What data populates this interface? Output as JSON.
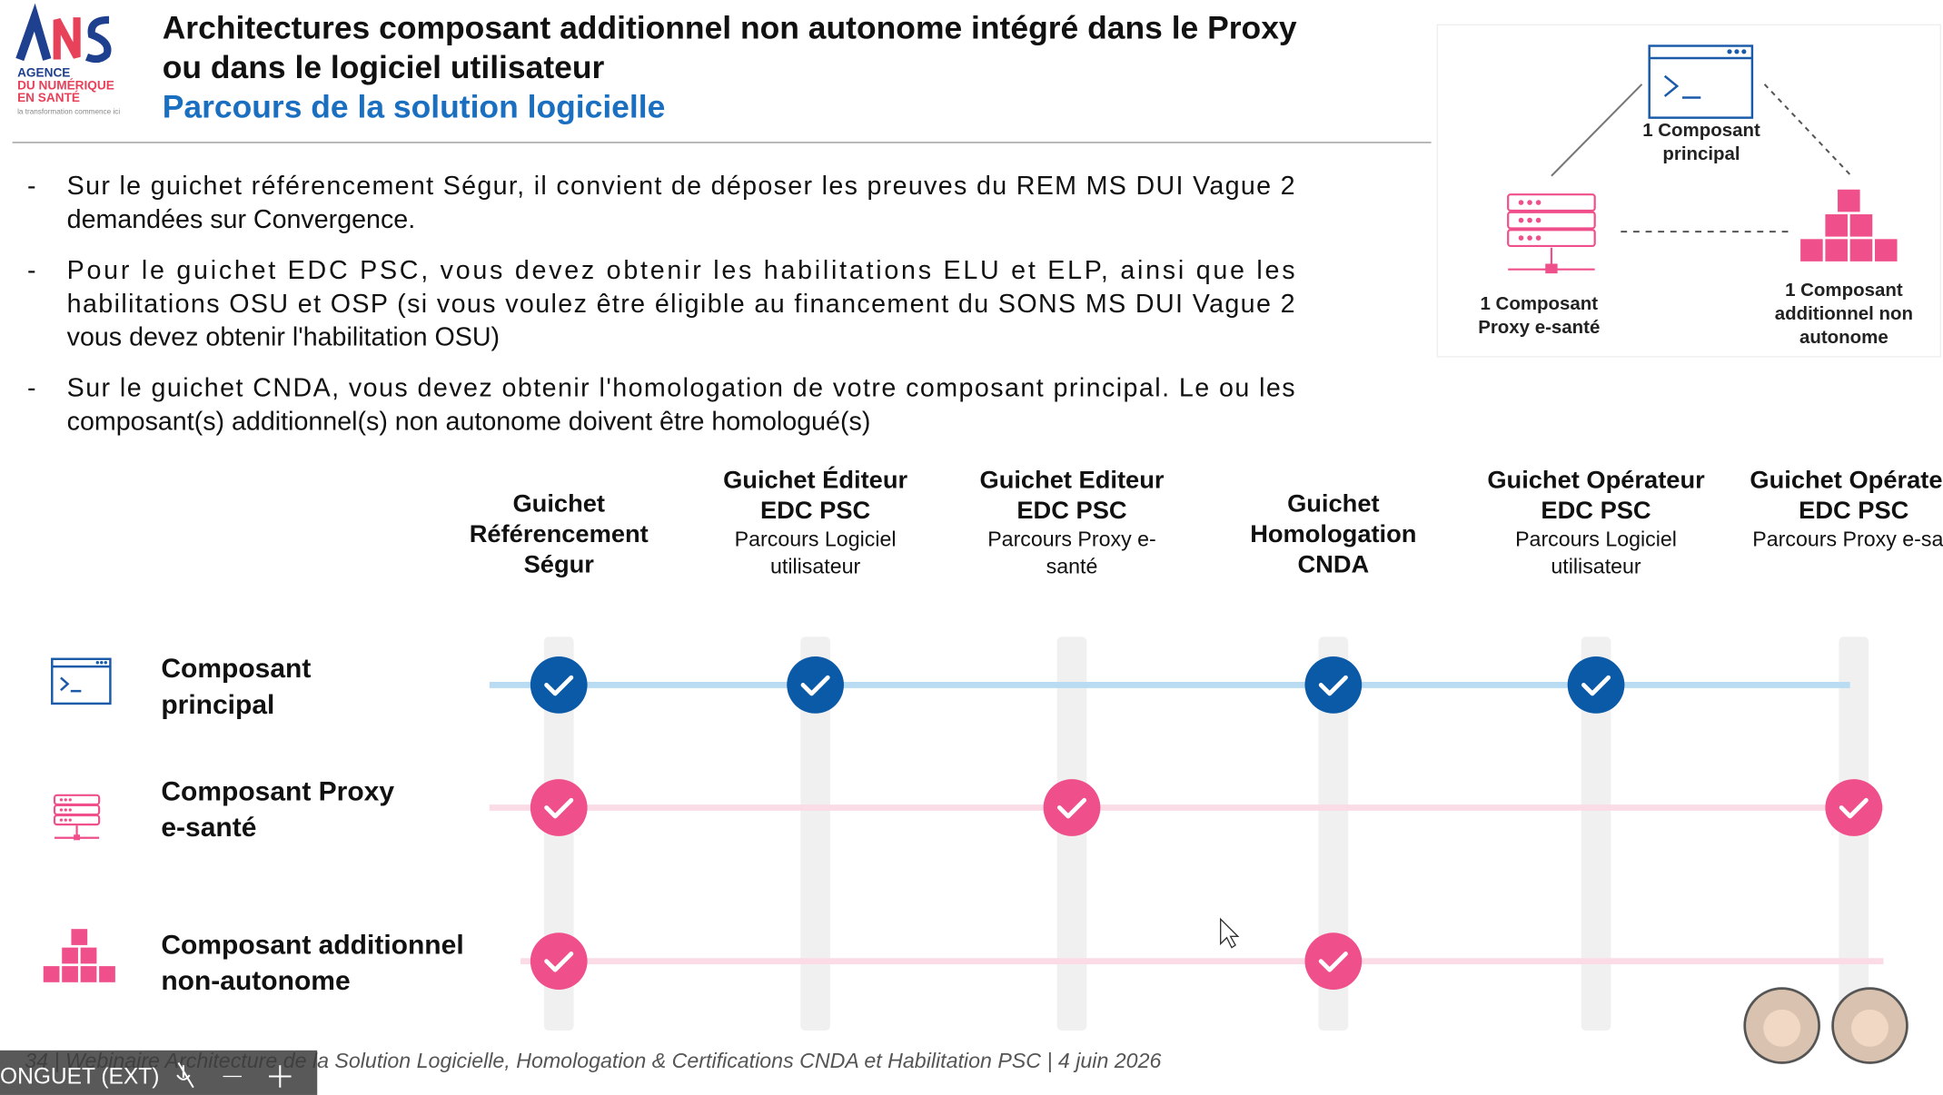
{
  "logo": {
    "lines": [
      "AGENCE",
      "DU NUMÉRIQUE",
      "EN SANTÉ"
    ],
    "tagline": "la transformation commence ici"
  },
  "header": {
    "title": [
      "Architectures composant additionnel non autonome intégré dans le Proxy",
      "ou dans le logiciel utilisateur"
    ],
    "subtitle": "Parcours de la solution logicielle"
  },
  "bullets": [
    [
      "Sur le guichet référencement Ségur, il convient de déposer les preuves du REM MS DUI Vague 2",
      "demandées sur Convergence."
    ],
    [
      "Pour le guichet EDC PSC, vous devez obtenir les habilitations ELU et ELP, ainsi que les",
      "habilitations OSU et OSP (si vous voulez être éligible au financement du SONS MS DUI Vague 2",
      "vous devez obtenir l'habilitation OSU)"
    ],
    [
      "Sur le guichet CNDA, vous devez obtenir l'homologation de votre composant principal. Le ou les",
      "composant(s) additionnel(s) non autonome doivent être homologué(s)"
    ]
  ],
  "diagram": {
    "principal": [
      "1 Composant",
      "principal"
    ],
    "proxy": [
      "1 Composant",
      "Proxy e-santé"
    ],
    "additionnel": [
      "1 Composant",
      "additionnel non",
      "autonome"
    ]
  },
  "columns": [
    {
      "title": [
        "Guichet",
        "Référencement",
        "Ségur"
      ],
      "subtitle": []
    },
    {
      "title": [
        "Guichet Éditeur",
        "EDC PSC"
      ],
      "subtitle": [
        "Parcours Logiciel",
        "utilisateur"
      ]
    },
    {
      "title": [
        "Guichet Editeur",
        "EDC PSC"
      ],
      "subtitle": [
        "Parcours Proxy e-",
        "santé"
      ]
    },
    {
      "title": [
        "Guichet",
        "Homologation",
        "CNDA"
      ],
      "subtitle": []
    },
    {
      "title": [
        "Guichet Opérateur",
        "EDC PSC"
      ],
      "subtitle": [
        "Parcours Logiciel",
        "utilisateur"
      ]
    },
    {
      "title": [
        "Guichet Opérateu",
        "EDC PSC"
      ],
      "subtitle": [
        "Parcours Proxy e-san"
      ]
    }
  ],
  "rows": [
    {
      "label": [
        "Composant",
        "principal"
      ],
      "checks": [
        true,
        true,
        false,
        true,
        true,
        false
      ]
    },
    {
      "label": [
        "Composant Proxy",
        "e-santé"
      ],
      "checks": [
        true,
        false,
        true,
        false,
        false,
        true
      ]
    },
    {
      "label": [
        "Composant additionnel",
        "non-autonome"
      ],
      "checks": [
        true,
        false,
        false,
        true,
        false,
        false
      ]
    }
  ],
  "footer": "34 | Webinaire Architecture de la Solution Logicielle, Homologation & Certifications CNDA et Habilitation PSC | 4 juin 2026",
  "participant": "ONGUET (EXT)"
}
